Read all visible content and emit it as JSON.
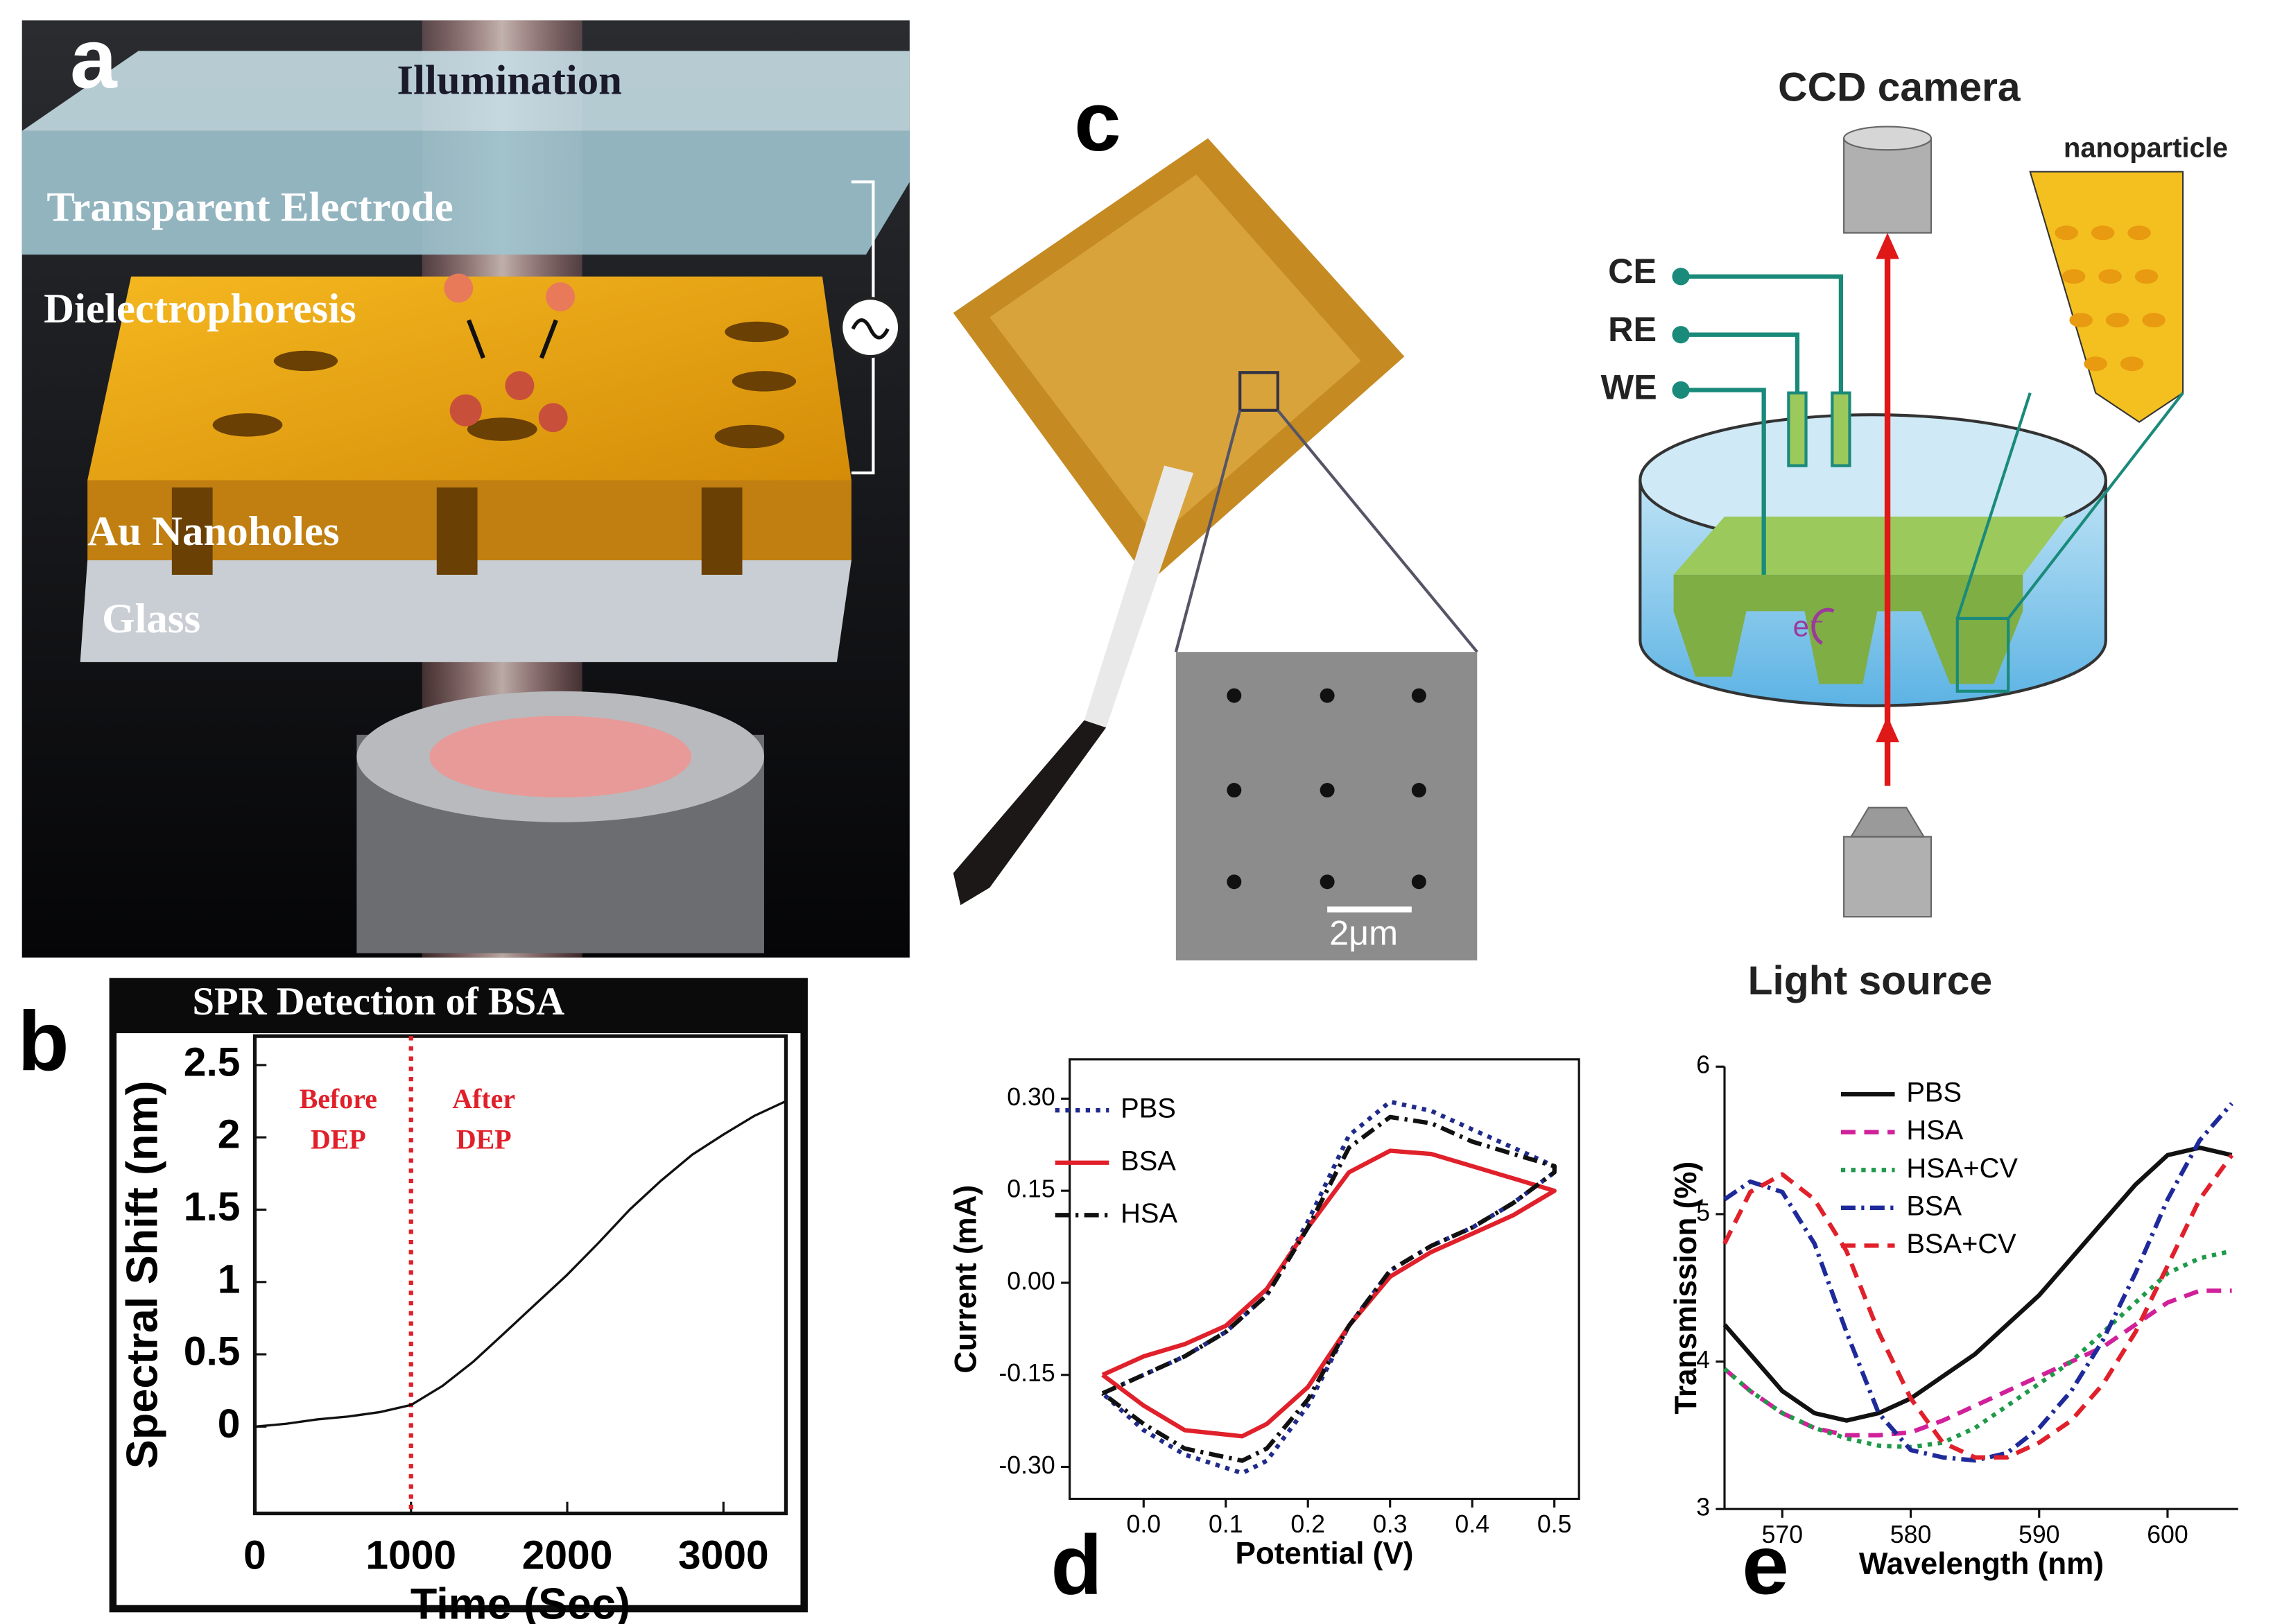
{
  "panel_labels": [
    "a",
    "b",
    "c",
    "d",
    "e"
  ],
  "diagram_a": {
    "labels": [
      "Illumination",
      "Transparent Electrode",
      "Dielectrophoresis",
      "Au Nanoholes",
      "Glass"
    ]
  },
  "diagram_c": {
    "scale_bar": "2μm",
    "labels": [
      "CCD camera",
      "nanoparticle",
      "CE",
      "RE",
      "WE",
      "e⁻",
      "Light source"
    ]
  },
  "chart_data": [
    {
      "type": "line",
      "title": "SPR Detection of BSA",
      "x_label": "Time (Sec)",
      "y_label": "Spectral Shift (nm)",
      "xlim": [
        0,
        3400
      ],
      "ylim": [
        -0.6,
        2.7
      ],
      "xticks": [
        0,
        1000,
        2000,
        3000
      ],
      "yticks": [
        0,
        0.5,
        1,
        1.5,
        2,
        2.5
      ],
      "x": [
        0,
        200,
        400,
        600,
        800,
        1000,
        1200,
        1400,
        1600,
        1800,
        2000,
        2200,
        2400,
        2600,
        2800,
        3000,
        3200,
        3400
      ],
      "series": [
        {
          "name": "BSA",
          "color": "#111111",
          "dash": "solid",
          "values": [
            0.0,
            0.02,
            0.05,
            0.07,
            0.1,
            0.15,
            0.28,
            0.45,
            0.65,
            0.85,
            1.05,
            1.27,
            1.5,
            1.7,
            1.88,
            2.02,
            2.15,
            2.25
          ]
        }
      ],
      "marker_x": 1000,
      "marker_color": "#e0202a",
      "annotations": [
        [
          "Before",
          "DEP"
        ],
        [
          "After",
          "DEP"
        ]
      ],
      "legend": false
    },
    {
      "type": "line",
      "x_label": "Potential (V)",
      "y_label": "Current (mA)",
      "xlim": [
        -0.09,
        0.53
      ],
      "ylim": [
        -0.352,
        0.364
      ],
      "xticks": [
        {
          "value": 0,
          "label": "0.0"
        },
        0.1,
        0.2,
        0.3,
        0.4,
        0.5
      ],
      "yticks": [
        {
          "value": -0.3,
          "label": "-0.30"
        },
        {
          "value": -0.15,
          "label": "-0.15"
        },
        {
          "value": 0,
          "label": "0.00"
        },
        0.15,
        {
          "value": 0.3,
          "label": "0.30"
        }
      ],
      "legend": true,
      "legend_corner": "top-left",
      "series": [
        {
          "name": "PBS",
          "color": "#1f2a8a",
          "dash": "dotted",
          "x": [
            -0.05,
            0.0,
            0.05,
            0.1,
            0.15,
            0.2,
            0.25,
            0.3,
            0.35,
            0.4,
            0.45,
            0.5,
            0.5,
            0.45,
            0.4,
            0.35,
            0.3,
            0.25,
            0.2,
            0.15,
            0.12,
            0.05,
            0.0,
            -0.05
          ],
          "values": [
            -0.18,
            -0.15,
            -0.12,
            -0.08,
            -0.02,
            0.1,
            0.24,
            0.295,
            0.28,
            0.25,
            0.22,
            0.19,
            0.18,
            0.13,
            0.09,
            0.06,
            0.02,
            -0.07,
            -0.2,
            -0.29,
            -0.31,
            -0.28,
            -0.24,
            -0.18
          ]
        },
        {
          "name": "BSA",
          "color": "#e0202a",
          "dash": "solid",
          "x": [
            -0.05,
            0.0,
            0.05,
            0.1,
            0.15,
            0.2,
            0.25,
            0.3,
            0.35,
            0.4,
            0.45,
            0.5,
            0.5,
            0.45,
            0.4,
            0.35,
            0.3,
            0.25,
            0.2,
            0.15,
            0.12,
            0.05,
            0.0,
            -0.05
          ],
          "values": [
            -0.15,
            -0.12,
            -0.1,
            -0.07,
            -0.01,
            0.09,
            0.18,
            0.215,
            0.21,
            0.19,
            0.17,
            0.15,
            0.15,
            0.11,
            0.08,
            0.05,
            0.01,
            -0.07,
            -0.17,
            -0.23,
            -0.25,
            -0.24,
            -0.2,
            -0.15
          ]
        },
        {
          "name": "HSA",
          "color": "#111111",
          "dash": "dashdot",
          "x": [
            -0.05,
            0.0,
            0.05,
            0.1,
            0.15,
            0.2,
            0.25,
            0.3,
            0.35,
            0.4,
            0.45,
            0.5,
            0.5,
            0.45,
            0.4,
            0.35,
            0.3,
            0.25,
            0.2,
            0.15,
            0.12,
            0.05,
            0.0,
            -0.05
          ],
          "values": [
            -0.18,
            -0.15,
            -0.12,
            -0.08,
            -0.02,
            0.09,
            0.22,
            0.27,
            0.26,
            0.23,
            0.21,
            0.19,
            0.18,
            0.13,
            0.09,
            0.06,
            0.02,
            -0.07,
            -0.19,
            -0.27,
            -0.29,
            -0.27,
            -0.23,
            -0.18
          ]
        }
      ]
    },
    {
      "type": "line",
      "x_label": "Wavelength (nm)",
      "y_label": "Transmission (%)",
      "xlim": [
        565.5,
        605.5
      ],
      "ylim": [
        3,
        6
      ],
      "xticks": [
        570,
        580,
        590,
        600
      ],
      "yticks": [
        3,
        4,
        5,
        6
      ],
      "legend": true,
      "legend_corner": "top-center",
      "x": [
        565.5,
        567.5,
        570,
        572.5,
        575,
        577.5,
        580,
        582.5,
        585,
        587.5,
        590,
        592.5,
        595,
        597.5,
        600,
        602.5,
        605
      ],
      "series": [
        {
          "name": "PBS",
          "color": "#111111",
          "dash": "solid",
          "values": [
            4.25,
            4.05,
            3.8,
            3.65,
            3.6,
            3.65,
            3.75,
            3.9,
            4.05,
            4.25,
            4.45,
            4.7,
            4.95,
            5.2,
            5.4,
            5.45,
            5.4
          ]
        },
        {
          "name": "HSA",
          "color": "#d0209a",
          "dash": "dashed",
          "values": [
            3.95,
            3.8,
            3.65,
            3.55,
            3.5,
            3.5,
            3.52,
            3.6,
            3.7,
            3.8,
            3.9,
            4.0,
            4.1,
            4.25,
            4.4,
            4.48,
            4.48
          ]
        },
        {
          "name": "HSA+CV",
          "color": "#1e9a4a",
          "dash": "dotted",
          "values": [
            3.95,
            3.8,
            3.65,
            3.55,
            3.48,
            3.43,
            3.42,
            3.45,
            3.55,
            3.7,
            3.85,
            4.0,
            4.2,
            4.4,
            4.6,
            4.7,
            4.75
          ]
        },
        {
          "name": "BSA",
          "color": "#1f2a9a",
          "dash": "dashdot",
          "values": [
            5.1,
            5.22,
            5.15,
            4.8,
            4.2,
            3.65,
            3.4,
            3.35,
            3.33,
            3.38,
            3.55,
            3.8,
            4.15,
            4.6,
            5.1,
            5.5,
            5.75
          ]
        },
        {
          "name": "BSA+CV",
          "color": "#e0202a",
          "dash": "dashed",
          "values": [
            4.8,
            5.15,
            5.27,
            5.1,
            4.75,
            4.2,
            3.75,
            3.45,
            3.35,
            3.35,
            3.45,
            3.6,
            3.85,
            4.2,
            4.65,
            5.1,
            5.4
          ]
        }
      ]
    }
  ]
}
